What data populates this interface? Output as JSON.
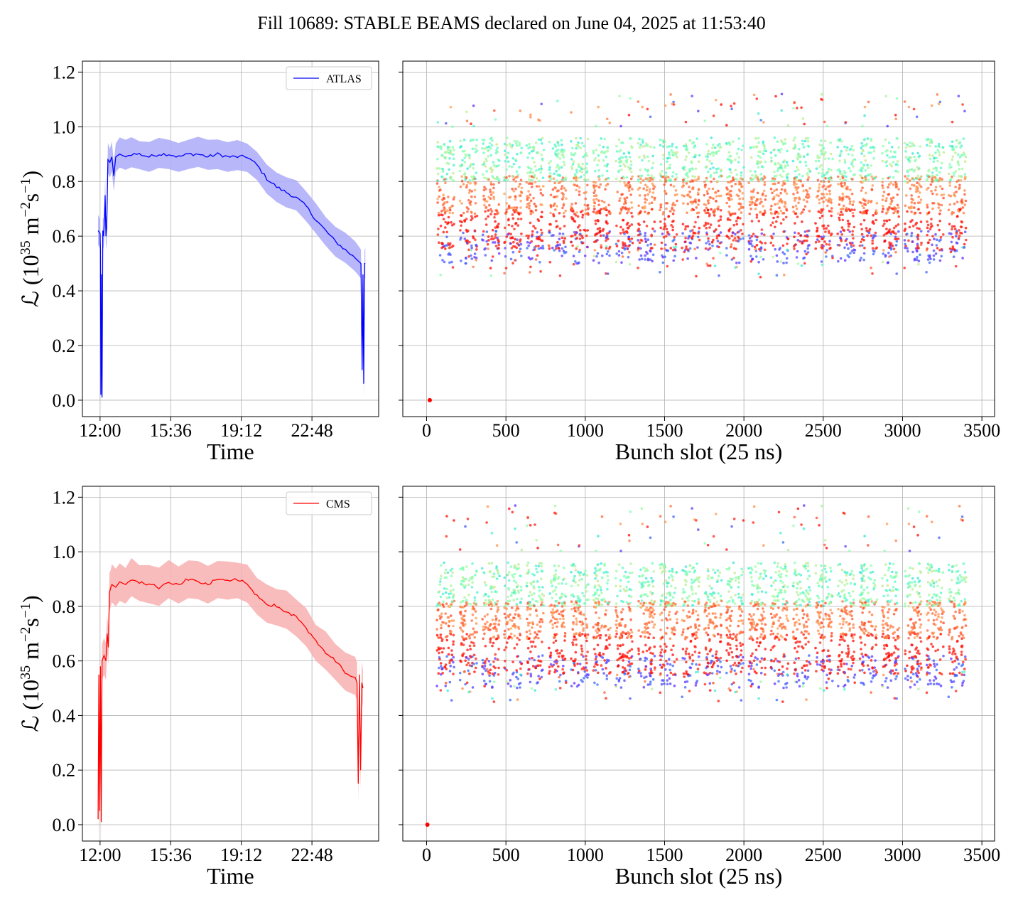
{
  "figure": {
    "title": "Fill 10689: STABLE BEAMS declared on June 04, 2025 at 11:53:40"
  },
  "colors": {
    "atlas": "#0000ff",
    "atlas_band": "#aaaaf8",
    "cms": "#ff0000",
    "cms_band": "#f8b0b0",
    "grid": "#b0b0b0",
    "scatter_colormap": "rainbow"
  },
  "chart_data": [
    {
      "id": "atlas-time",
      "type": "line",
      "xlabel": "Time",
      "ylabel": "ℒ (10^35 m^-2 s^-1)",
      "ylabel_parts": {
        "prefix": "ℒ (10",
        "exp1": "35",
        "mid": " m",
        "exp2": "−2",
        "mid2": "s",
        "exp3": "−1",
        "suffix": ")"
      },
      "x_ticks": [
        "12:00",
        "15:36",
        "19:12",
        "22:48"
      ],
      "y_ticks": [
        "0.0",
        "0.2",
        "0.4",
        "0.6",
        "0.8",
        "1.0",
        "1.2"
      ],
      "ylim": [
        -0.06,
        1.24
      ],
      "xlim_hours": [
        11.1,
        26.2
      ],
      "grid": true,
      "legend": {
        "label": "ATLAS",
        "placement": "top-right"
      },
      "series": [
        {
          "name": "ATLAS",
          "x_hours": [
            11.9,
            12.0,
            12.02,
            12.04,
            12.06,
            12.1,
            12.14,
            12.18,
            12.22,
            12.26,
            12.3,
            12.34,
            12.4,
            12.5,
            12.6,
            12.7,
            12.8,
            13.0,
            13.3,
            13.6,
            14.0,
            14.5,
            15.0,
            15.5,
            16.0,
            16.5,
            17.0,
            17.5,
            18.0,
            18.5,
            19.0,
            19.5,
            20.0,
            20.5,
            21.0,
            21.5,
            22.0,
            22.5,
            23.0,
            23.5,
            24.0,
            24.5,
            25.0,
            25.3,
            25.36,
            25.4,
            25.44,
            25.48,
            25.52
          ],
          "values": [
            0.62,
            0.61,
            0.55,
            0.02,
            0.46,
            0.01,
            0.62,
            0.6,
            0.65,
            0.75,
            0.6,
            0.63,
            0.88,
            0.87,
            0.89,
            0.82,
            0.89,
            0.9,
            0.89,
            0.9,
            0.9,
            0.89,
            0.9,
            0.9,
            0.89,
            0.9,
            0.9,
            0.89,
            0.9,
            0.89,
            0.89,
            0.89,
            0.86,
            0.81,
            0.78,
            0.76,
            0.74,
            0.71,
            0.66,
            0.62,
            0.58,
            0.55,
            0.52,
            0.5,
            0.11,
            0.46,
            0.06,
            0.5,
            0.5
          ],
          "band_halfwidth": 0.055
        }
      ]
    },
    {
      "id": "atlas-bunch",
      "type": "scatter",
      "xlabel": "Bunch slot (25 ns)",
      "ylabel": "",
      "x_ticks": [
        "0",
        "500",
        "1000",
        "1500",
        "2000",
        "2500",
        "3000",
        "3500"
      ],
      "y_ticks": [
        "0.0",
        "0.2",
        "0.4",
        "0.6",
        "0.8",
        "1.0",
        "1.2"
      ],
      "xlim": [
        -150,
        3580
      ],
      "ylim": [
        -0.06,
        1.24
      ],
      "grid": true,
      "colormap": "rainbow",
      "trains_x": [
        65,
        210,
        350,
        490,
        630,
        770,
        910,
        1050,
        1190,
        1330,
        1470,
        1610,
        1750,
        1890,
        2030,
        2170,
        2310,
        2450,
        2590,
        2730,
        2870,
        3010,
        3150,
        3290
      ],
      "train_width": 110,
      "value_range": [
        0.35,
        1.12
      ],
      "isolated_point": [
        20,
        0.0
      ]
    },
    {
      "id": "cms-time",
      "type": "line",
      "xlabel": "Time",
      "ylabel": "ℒ (10^35 m^-2 s^-1)",
      "ylabel_parts": {
        "prefix": "ℒ (10",
        "exp1": "35",
        "mid": " m",
        "exp2": "−2",
        "mid2": "s",
        "exp3": "−1",
        "suffix": ")"
      },
      "x_ticks": [
        "12:00",
        "15:36",
        "19:12",
        "22:48"
      ],
      "y_ticks": [
        "0.0",
        "0.2",
        "0.4",
        "0.6",
        "0.8",
        "1.0",
        "1.2"
      ],
      "ylim": [
        -0.06,
        1.24
      ],
      "xlim_hours": [
        11.1,
        26.2
      ],
      "grid": true,
      "legend": {
        "label": "CMS",
        "placement": "top-right"
      },
      "series": [
        {
          "name": "CMS",
          "x_hours": [
            11.9,
            11.94,
            11.98,
            12.02,
            12.06,
            12.1,
            12.2,
            12.3,
            12.36,
            12.42,
            12.48,
            12.55,
            12.6,
            12.8,
            13.0,
            13.3,
            13.6,
            14.0,
            14.5,
            15.0,
            15.5,
            16.0,
            16.5,
            17.0,
            17.5,
            18.0,
            18.5,
            19.0,
            19.5,
            20.0,
            20.5,
            21.0,
            21.5,
            22.0,
            22.5,
            23.0,
            23.5,
            24.0,
            24.5,
            25.0,
            25.1,
            25.16,
            25.22,
            25.28,
            25.34,
            25.4
          ],
          "values": [
            0.02,
            0.55,
            0.05,
            0.58,
            0.01,
            0.6,
            0.62,
            0.6,
            0.7,
            0.65,
            0.85,
            0.87,
            0.88,
            0.87,
            0.89,
            0.88,
            0.9,
            0.89,
            0.88,
            0.87,
            0.89,
            0.88,
            0.9,
            0.89,
            0.88,
            0.9,
            0.89,
            0.9,
            0.88,
            0.84,
            0.81,
            0.8,
            0.78,
            0.76,
            0.72,
            0.67,
            0.63,
            0.6,
            0.56,
            0.54,
            0.52,
            0.15,
            0.55,
            0.2,
            0.52,
            0.5
          ],
          "band_halfwidth": 0.07
        }
      ]
    },
    {
      "id": "cms-bunch",
      "type": "scatter",
      "xlabel": "Bunch slot (25 ns)",
      "ylabel": "",
      "x_ticks": [
        "0",
        "500",
        "1000",
        "1500",
        "2000",
        "2500",
        "3000",
        "3500"
      ],
      "y_ticks": [
        "0.0",
        "0.2",
        "0.4",
        "0.6",
        "0.8",
        "1.0",
        "1.2"
      ],
      "xlim": [
        -150,
        3580
      ],
      "ylim": [
        -0.06,
        1.24
      ],
      "grid": true,
      "colormap": "rainbow",
      "trains_x": [
        65,
        210,
        350,
        490,
        630,
        770,
        910,
        1050,
        1190,
        1330,
        1470,
        1610,
        1750,
        1890,
        2030,
        2170,
        2310,
        2450,
        2590,
        2730,
        2870,
        3010,
        3150,
        3290
      ],
      "train_width": 110,
      "value_range": [
        0.35,
        1.17
      ],
      "isolated_point": [
        5,
        0.0
      ]
    }
  ]
}
